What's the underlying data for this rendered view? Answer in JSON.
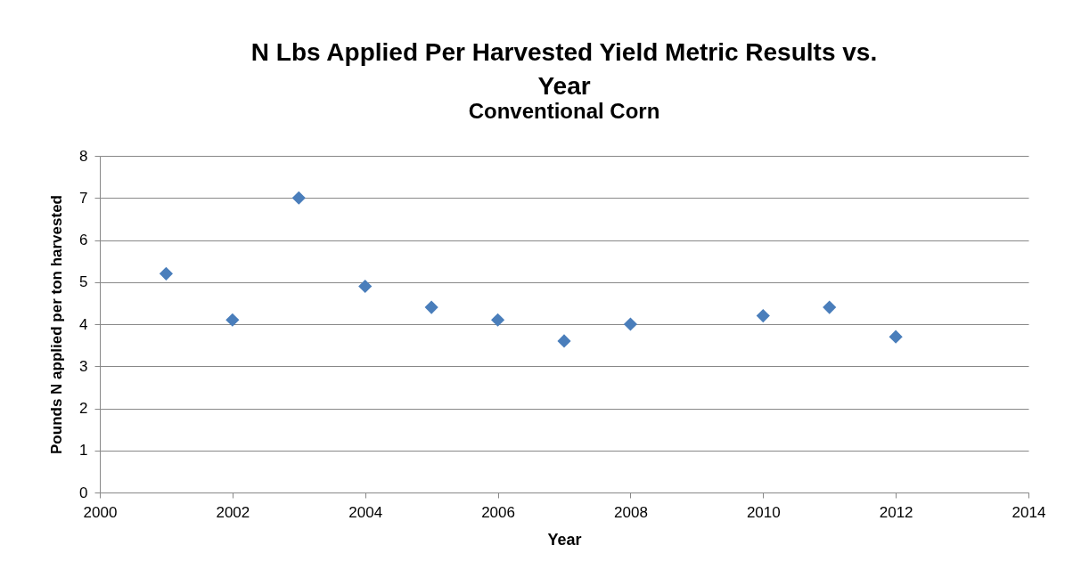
{
  "chart_data": {
    "type": "scatter",
    "title": "N Lbs Applied Per Harvested Yield Metric Results vs. Year",
    "subtitle": "Conventional Corn",
    "xlabel": "Year",
    "ylabel": "Pounds N applied per ton harvested",
    "x": [
      2001,
      2002,
      2003,
      2004,
      2005,
      2006,
      2007,
      2008,
      2010,
      2011,
      2012
    ],
    "series": [
      {
        "color": "#4a7ebb",
        "values": [
          5.2,
          4.1,
          7.0,
          4.9,
          4.4,
          4.1,
          3.6,
          4.0,
          4.2,
          4.4,
          3.7
        ]
      }
    ],
    "xlim": [
      2000,
      2014
    ],
    "xticks": [
      2000,
      2002,
      2004,
      2006,
      2008,
      2010,
      2012,
      2014
    ],
    "ylim": [
      0,
      8
    ],
    "yticks": [
      0,
      1,
      2,
      3,
      4,
      5,
      6,
      7,
      8
    ],
    "grid": "y",
    "marker": "diamond"
  }
}
